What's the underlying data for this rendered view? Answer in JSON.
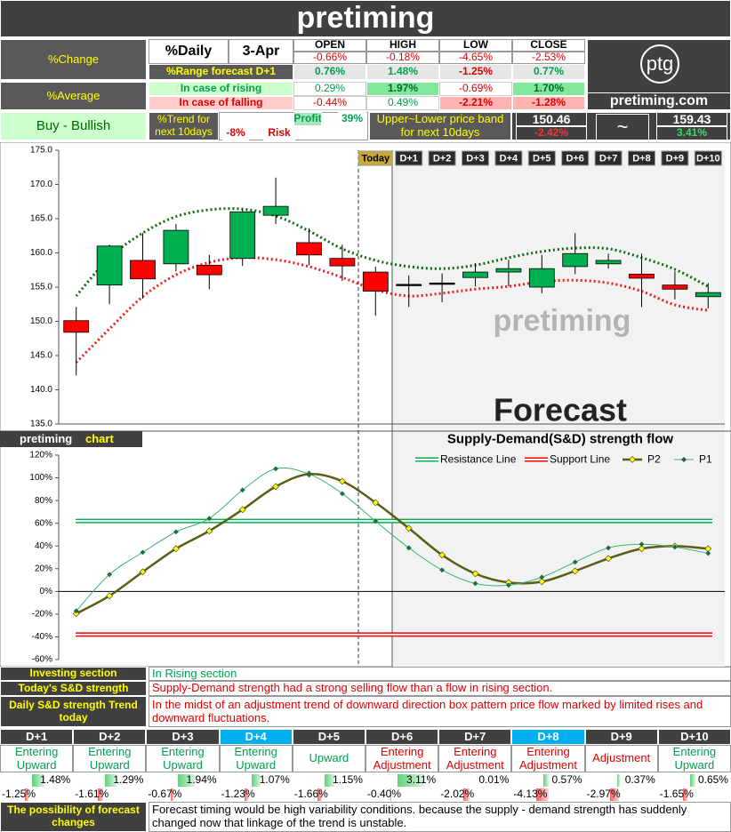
{
  "header": {
    "title": "pretiming"
  },
  "summary": {
    "change_label": "%Change",
    "daily_label": "%Daily",
    "date": "3-Apr",
    "columns": [
      "OPEN",
      "HIGH",
      "LOW",
      "CLOSE"
    ],
    "change": [
      "-0.66%",
      "-0.18%",
      "-4.65%",
      "-2.53%"
    ],
    "range_label": "%Range forecast D+1",
    "range": [
      "0.76%",
      "1.48%",
      "-1.25%",
      "0.77%"
    ],
    "average_label": "%Average",
    "rising_label": "In case of rising",
    "rising": [
      "0.29%",
      "1.97%",
      "-0.69%",
      "1.70%"
    ],
    "falling_label": "In case of falling",
    "falling": [
      "-0.44%",
      "0.49%",
      "-2.21%",
      "-1.28%"
    ]
  },
  "logo": {
    "mark": "ptg",
    "site": "pretiming.com"
  },
  "signal": {
    "label": "Buy - Bullish",
    "trend_label": "%Trend for next 10days",
    "profit_label": "Profit",
    "profit": "39%",
    "risk": "-8%",
    "risk_label": "Risk",
    "band_label": "Upper~Lower price band for next 10days",
    "lower": "150.46",
    "lower_change": "-2.42%",
    "separator": "~",
    "upper": "159.43",
    "upper_change": "3.41%"
  },
  "chart_data": [
    {
      "type": "candlestick",
      "categories": [
        null,
        null,
        null,
        null,
        null,
        null,
        null,
        null,
        null,
        "Today",
        "D+1",
        "D+2",
        "D+3",
        "D+4",
        "D+5",
        "D+6",
        "D+7",
        "D+8",
        "D+9",
        "D+10"
      ],
      "open": [
        150.1,
        155.3,
        158.9,
        158.4,
        158.2,
        159.2,
        165.5,
        161.5,
        159.2,
        157.2,
        155.4,
        155.6,
        156.4,
        157.2,
        155.0,
        158.0,
        158.4,
        156.9,
        155.3,
        153.6
      ],
      "high": [
        152.1,
        161.2,
        162.9,
        164.2,
        159.7,
        166.4,
        171.0,
        163.6,
        161.2,
        158.0,
        156.7,
        157.0,
        158.5,
        159.0,
        159.7,
        162.9,
        159.9,
        159.9,
        157.3,
        155.6
      ],
      "low": [
        142.1,
        152.5,
        153.3,
        157.3,
        154.7,
        158.1,
        164.2,
        158.2,
        155.9,
        150.8,
        152.1,
        152.8,
        155.1,
        155.1,
        154.1,
        156.9,
        157.7,
        152.1,
        153.2,
        151.9
      ],
      "close": [
        148.4,
        161.0,
        156.2,
        163.3,
        156.8,
        166.0,
        166.8,
        159.7,
        158.1,
        154.4,
        155.4,
        155.6,
        157.2,
        157.7,
        157.7,
        159.9,
        158.9,
        156.3,
        154.7,
        154.2
      ],
      "up_color": "#00b050",
      "down_color": "#ff0000",
      "upper_line": [
        153.7,
        159.3,
        162.9,
        165.3,
        166.3,
        166.4,
        165.4,
        163.2,
        160.6,
        158.9,
        158.0,
        157.7,
        158.2,
        159.3,
        160.2,
        160.7,
        160.6,
        159.3,
        157.6,
        155.1
      ],
      "lower_line": [
        144.0,
        148.9,
        153.6,
        156.8,
        158.6,
        159.3,
        159.0,
        158.0,
        156.4,
        154.6,
        153.7,
        154.1,
        154.7,
        155.1,
        155.8,
        156.0,
        155.6,
        154.4,
        152.4,
        151.6
      ],
      "upper_color": "#0b6b0b",
      "lower_color": "#ee1c1c",
      "ylim": [
        135,
        175
      ],
      "yticks": [
        {
          "value": 135,
          "label": "135.0"
        },
        {
          "value": 140,
          "label": "140.0"
        },
        {
          "value": 145,
          "label": "145.0"
        },
        {
          "value": 150,
          "label": "150.0"
        },
        {
          "value": 155,
          "label": "155.0"
        },
        {
          "value": 160,
          "label": "160.0"
        },
        {
          "value": 165,
          "label": "165.0"
        },
        {
          "value": 170,
          "label": "170.0"
        },
        {
          "value": 175,
          "label": "175.0"
        }
      ],
      "watermark": "pretiming",
      "annotation": "Forecast"
    },
    {
      "type": "line",
      "tab_title": "pretiming",
      "tab_subtitle": "chart",
      "title": "Supply-Demand(S&D) strength flow",
      "series": [
        {
          "name": "Resistance Line",
          "color": "#00b050",
          "style": "double",
          "values": [
            62,
            62,
            62,
            62,
            62,
            62,
            62,
            62,
            62,
            62,
            62,
            62,
            62,
            62,
            62,
            62,
            62,
            62,
            62,
            62
          ]
        },
        {
          "name": "Support Line",
          "color": "#ff0000",
          "style": "double",
          "values": [
            -38,
            -38,
            -38,
            -38,
            -38,
            -38,
            -38,
            -38,
            -38,
            -38,
            -38,
            -38,
            -38,
            -38,
            -38,
            -38,
            -38,
            -38,
            -38,
            -38
          ]
        },
        {
          "name": "P2",
          "color": "#5c5c14",
          "marker_color": "#ffff00",
          "values": [
            -19.6,
            -3.9,
            17.2,
            37.6,
            53.2,
            72.0,
            92.3,
            103.3,
            97.0,
            78.2,
            55.6,
            32.1,
            15.6,
            7.8,
            8.6,
            18.0,
            29.0,
            37.6,
            39.9,
            37.6
          ]
        },
        {
          "name": "P1",
          "color": "#3cb371",
          "marker_color": "#1e6e3c",
          "values": [
            -17.2,
            14.9,
            34.4,
            52.4,
            64.2,
            89.2,
            108.0,
            103.3,
            86.1,
            61.8,
            38.3,
            18.8,
            7.0,
            5.5,
            12.5,
            25.8,
            38.3,
            41.5,
            39.1,
            33.6
          ]
        }
      ],
      "ylim": [
        -60,
        120
      ],
      "yticks": [
        {
          "value": -60,
          "label": "-60%"
        },
        {
          "value": -40,
          "label": "-40%"
        },
        {
          "value": -20,
          "label": "-20%"
        },
        {
          "value": 0,
          "label": "0%"
        },
        {
          "value": 20,
          "label": "20%"
        },
        {
          "value": 40,
          "label": "40%"
        },
        {
          "value": 60,
          "label": "60%"
        },
        {
          "value": 80,
          "label": "80%"
        },
        {
          "value": 100,
          "label": "100%"
        },
        {
          "value": 120,
          "label": "120%"
        }
      ]
    }
  ],
  "analysis": {
    "rows": [
      [
        "Investing section",
        "In Rising section"
      ],
      [
        "Today's S&D strength",
        "Supply-Demand strength had a strong selling flow than a flow in rising section."
      ],
      [
        "Daily S&D strength Trend today",
        "In the midst of an adjustment trend of downward direction box pattern price flow marked by limited rises and downward fluctuations."
      ]
    ]
  },
  "forecast": {
    "days": [
      "D+1",
      "D+2",
      "D+3",
      "D+4",
      "D+5",
      "D+6",
      "D+7",
      "D+8",
      "D+9",
      "D+10"
    ],
    "trends": [
      "Entering Upward",
      "Entering Upward",
      "Entering Upward",
      "Entering Upward",
      "Upward",
      "Entering Adjustment",
      "Entering Adjustment",
      "Entering Adjustment",
      "Adjustment",
      "Entering Upward"
    ],
    "rise": {
      "values": [
        1.48,
        1.29,
        1.94,
        1.07,
        1.15,
        3.11,
        0.01,
        0.57,
        0.37,
        0.65
      ],
      "value_labels": [
        "1.48%",
        "1.29%",
        "1.94%",
        "1.07%",
        "1.15%",
        "3.11%",
        "0.01%",
        "0.57%",
        "0.37%",
        "0.65%"
      ]
    },
    "fall": {
      "values": [
        -1.25,
        -1.61,
        -0.67,
        -1.23,
        -1.66,
        -0.4,
        -2.02,
        -4.13,
        -2.97,
        -1.65
      ],
      "value_labels": [
        "-1.25%",
        "-1.61%",
        "-0.67%",
        "-1.23%",
        "-1.66%",
        "-0.40%",
        "-2.02%",
        "-4.13%",
        "-2.97%",
        "-1.65%"
      ]
    },
    "possibility_label": "The possibility of forecast changes",
    "possibility": "Forecast timing would be high variability conditions. because the supply - demand strength has suddenly changed now that linkage of the trend is unstable."
  }
}
